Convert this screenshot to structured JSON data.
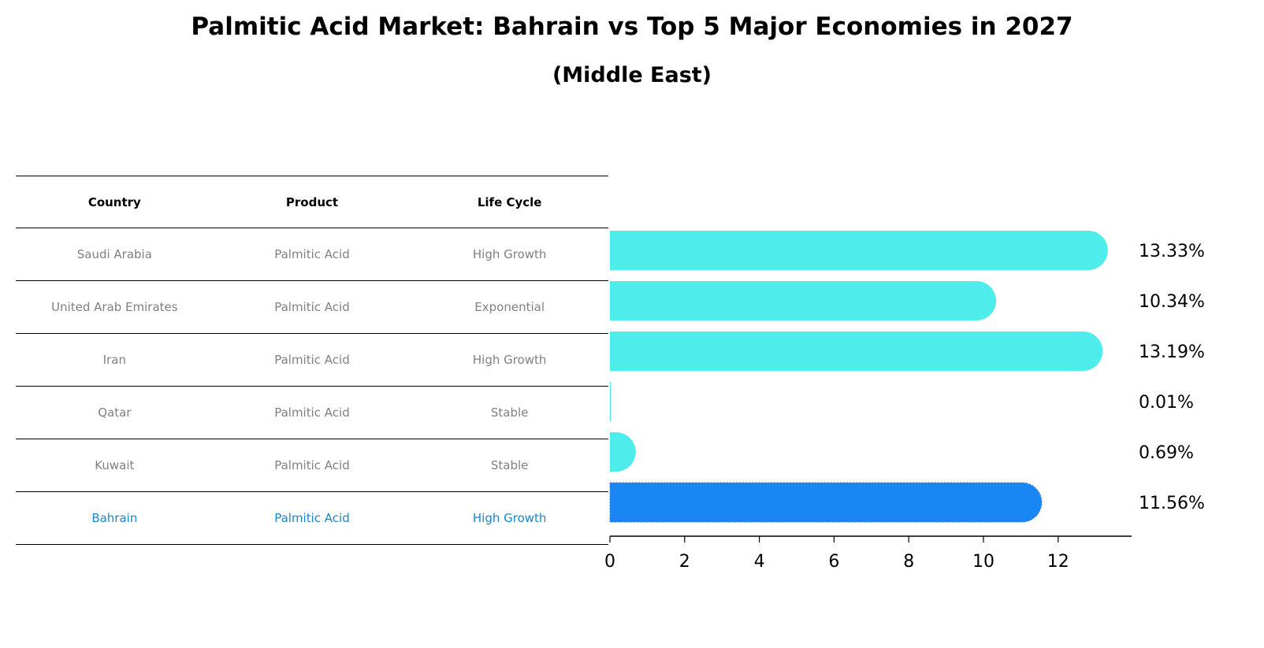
{
  "title": "Palmitic Acid Market: Bahrain vs Top 5 Major Economies in 2027",
  "subtitle": "(Middle East)",
  "table": {
    "headers": [
      "Country",
      "Product",
      "Life Cycle"
    ],
    "rows": [
      {
        "country": "Saudi Arabia",
        "product": "Palmitic Acid",
        "life_cycle": "High Growth",
        "highlight": false
      },
      {
        "country": "United Arab Emirates",
        "product": "Palmitic Acid",
        "life_cycle": "Exponential",
        "highlight": false
      },
      {
        "country": "Iran",
        "product": "Palmitic Acid",
        "life_cycle": "High Growth",
        "highlight": false
      },
      {
        "country": "Qatar",
        "product": "Palmitic Acid",
        "life_cycle": "Stable",
        "highlight": false
      },
      {
        "country": "Kuwait",
        "product": "Palmitic Acid",
        "life_cycle": "Stable",
        "highlight": false
      },
      {
        "country": "Bahrain",
        "product": "Palmitic Acid",
        "life_cycle": "High Growth",
        "highlight": true
      }
    ]
  },
  "colors": {
    "bar": "#4eecea",
    "highlight_bar": "#1a86f4",
    "highlight_text": "#1a86c8",
    "row_text": "#808080"
  },
  "chart_data": {
    "type": "bar",
    "orientation": "horizontal",
    "categories": [
      "Saudi Arabia",
      "United Arab Emirates",
      "Iran",
      "Qatar",
      "Kuwait",
      "Bahrain"
    ],
    "values": [
      13.33,
      10.34,
      13.19,
      0.01,
      0.69,
      11.56
    ],
    "data_labels": [
      "13.33%",
      "10.34%",
      "13.19%",
      "0.01%",
      "0.69%",
      "11.56%"
    ],
    "highlight": "Bahrain",
    "xlim": [
      0,
      14
    ],
    "xticks": [
      0,
      2,
      4,
      6,
      8,
      10,
      12
    ],
    "xlabel": "",
    "ylabel": ""
  }
}
